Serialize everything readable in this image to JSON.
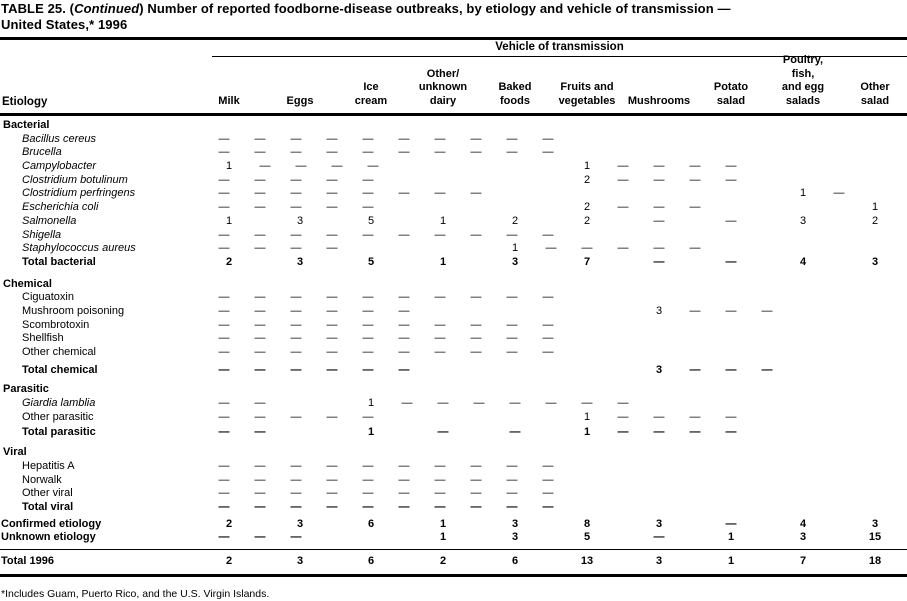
{
  "header": {
    "title_part1": "TABLE 25. (",
    "title_continued": "Continued",
    "title_part2": ") Number of reported foodborne-disease outbreaks, by etiology and vehicle of transmission —",
    "title_line2": "United States,* 1996"
  },
  "table": {
    "spanner": "Vehicle of transmission",
    "etiology_header": "Etiology",
    "columns": [
      {
        "label": "Milk",
        "lines": [
          "Milk"
        ]
      },
      {
        "label": "Eggs",
        "lines": [
          "Eggs"
        ]
      },
      {
        "label": "Ice cream",
        "lines": [
          "Ice",
          "cream"
        ]
      },
      {
        "label": "Other/unknown dairy",
        "lines": [
          "Other/",
          "unknown",
          "dairy"
        ]
      },
      {
        "label": "Baked foods",
        "lines": [
          "Baked",
          "foods"
        ]
      },
      {
        "label": "Fruits and vegetables",
        "lines": [
          "Fruits and",
          "vegetables"
        ]
      },
      {
        "label": "Mushrooms",
        "lines": [
          "Mushrooms"
        ]
      },
      {
        "label": "Potato salad",
        "lines": [
          "Potato",
          "salad"
        ]
      },
      {
        "label": "Poultry, fish, and egg salads",
        "lines": [
          "Poultry,",
          "fish,",
          "and egg",
          "salads"
        ]
      },
      {
        "label": "Other salad",
        "lines": [
          "Other",
          "salad"
        ]
      }
    ],
    "sections": [
      {
        "name": "Bacterial",
        "items": [
          {
            "label": "Bacillus cereus",
            "italic": true,
            "values": [
              "—",
              "—",
              "—",
              "—",
              "—",
              "—",
              "—",
              "—",
              "—",
              "—"
            ]
          },
          {
            "label": "Brucella",
            "italic": true,
            "values": [
              "—",
              "—",
              "—",
              "—",
              "—",
              "—",
              "—",
              "—",
              "—",
              "—"
            ]
          },
          {
            "label": "Campylobacter",
            "italic": true,
            "values": [
              "1",
              "—",
              "—",
              "—",
              "—",
              "1",
              "—",
              "—",
              "—",
              "—"
            ]
          },
          {
            "label": "Clostridium botulinum",
            "italic": true,
            "values": [
              "—",
              "—",
              "—",
              "—",
              "—",
              "2",
              "—",
              "—",
              "—",
              "—"
            ]
          },
          {
            "label": "Clostridium perfringens",
            "italic": true,
            "values": [
              "—",
              "—",
              "—",
              "—",
              "—",
              "—",
              "—",
              "—",
              "1",
              "—"
            ]
          },
          {
            "label": "Escherichia coli",
            "italic": true,
            "values": [
              "—",
              "—",
              "—",
              "—",
              "—",
              "2",
              "—",
              "—",
              "—",
              "1"
            ]
          },
          {
            "label": "Salmonella",
            "italic": true,
            "values": [
              "1",
              "3",
              "5",
              "1",
              "2",
              "2",
              "—",
              "—",
              "3",
              "2"
            ]
          },
          {
            "label": "Shigella",
            "italic": true,
            "values": [
              "—",
              "—",
              "—",
              "—",
              "—",
              "—",
              "—",
              "—",
              "—",
              "—"
            ]
          },
          {
            "label": "Staphylococcus aureus",
            "italic": true,
            "values": [
              "—",
              "—",
              "—",
              "—",
              "1",
              "—",
              "—",
              "—",
              "—",
              "—"
            ]
          }
        ],
        "total": {
          "label": "Total bacterial",
          "values": [
            "2",
            "3",
            "5",
            "1",
            "3",
            "7",
            "—",
            "—",
            "4",
            "3"
          ]
        }
      },
      {
        "name": "Chemical",
        "items": [
          {
            "label": "Ciguatoxin",
            "italic": false,
            "values": [
              "—",
              "—",
              "—",
              "—",
              "—",
              "—",
              "—",
              "—",
              "—",
              "—"
            ]
          },
          {
            "label": "Mushroom poisoning",
            "italic": false,
            "values": [
              "—",
              "—",
              "—",
              "—",
              "—",
              "—",
              "3",
              "—",
              "—",
              "—"
            ]
          },
          {
            "label": "Scombrotoxin",
            "italic": false,
            "values": [
              "—",
              "—",
              "—",
              "—",
              "—",
              "—",
              "—",
              "—",
              "—",
              "—"
            ]
          },
          {
            "label": "Shellfish",
            "italic": false,
            "values": [
              "—",
              "—",
              "—",
              "—",
              "—",
              "—",
              "—",
              "—",
              "—",
              "—"
            ]
          },
          {
            "label": "Other chemical",
            "italic": false,
            "values": [
              "—",
              "—",
              "—",
              "—",
              "—",
              "—",
              "—",
              "—",
              "—",
              "—"
            ]
          }
        ],
        "total": {
          "label": "Total chemical",
          "values": [
            "—",
            "—",
            "—",
            "—",
            "—",
            "—",
            "3",
            "—",
            "—",
            "—"
          ]
        }
      },
      {
        "name": "Parasitic",
        "items": [
          {
            "label": "Giardia lamblia",
            "italic": true,
            "values": [
              "—",
              "—",
              "1",
              "—",
              "—",
              "—",
              "—",
              "—",
              "—",
              "—"
            ]
          },
          {
            "label": "Other parasitic",
            "italic": false,
            "values": [
              "—",
              "—",
              "—",
              "—",
              "—",
              "1",
              "—",
              "—",
              "—",
              "—"
            ]
          }
        ],
        "total": {
          "label": "Total parasitic",
          "values": [
            "—",
            "—",
            "1",
            "—",
            "—",
            "1",
            "—",
            "—",
            "—",
            "—"
          ]
        }
      },
      {
        "name": "Viral",
        "items": [
          {
            "label": "Hepatitis A",
            "italic": false,
            "values": [
              "—",
              "—",
              "—",
              "—",
              "—",
              "—",
              "—",
              "—",
              "—",
              "—"
            ]
          },
          {
            "label": "Norwalk",
            "italic": false,
            "values": [
              "—",
              "—",
              "—",
              "—",
              "—",
              "—",
              "—",
              "—",
              "—",
              "—"
            ]
          },
          {
            "label": "Other viral",
            "italic": false,
            "values": [
              "—",
              "—",
              "—",
              "—",
              "—",
              "—",
              "—",
              "—",
              "—",
              "—"
            ]
          }
        ],
        "total": {
          "label": "Total viral",
          "values": [
            "—",
            "—",
            "—",
            "—",
            "—",
            "—",
            "—",
            "—",
            "—",
            "—"
          ]
        }
      }
    ],
    "summary_rows": [
      {
        "label": "Confirmed etiology",
        "values": [
          "2",
          "3",
          "6",
          "1",
          "3",
          "8",
          "3",
          "—",
          "4",
          "3"
        ]
      },
      {
        "label": "Unknown etiology",
        "values": [
          "—",
          "—",
          "—",
          "1",
          "3",
          "5",
          "—",
          "1",
          "3",
          "15"
        ]
      }
    ],
    "grand_total": {
      "label": "Total 1996",
      "values": [
        "2",
        "3",
        "6",
        "2",
        "6",
        "13",
        "3",
        "1",
        "7",
        "18"
      ]
    }
  },
  "footnote": "*Includes Guam, Puerto Rico, and the U.S. Virgin Islands."
}
